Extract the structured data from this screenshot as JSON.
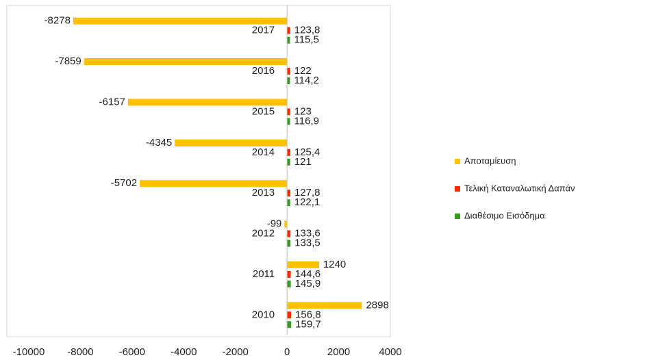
{
  "chart_data": {
    "type": "bar",
    "orientation": "horizontal",
    "categories": [
      "2010",
      "2011",
      "2012",
      "2013",
      "2014",
      "2015",
      "2016",
      "2017"
    ],
    "series": [
      {
        "name": "Αποταμίευση",
        "color": "#ffc000",
        "values": [
          2898,
          1240,
          -99,
          -5702,
          -4345,
          -6157,
          -7859,
          -8278
        ]
      },
      {
        "name": "Τελική Καταναλωτική Δαπάν",
        "color": "#ff2a00",
        "values": [
          156.8,
          144.6,
          133.6,
          127.8,
          125.4,
          123,
          122,
          123.8
        ],
        "value_labels": [
          "156,8",
          "144,6",
          "133,6",
          "127,8",
          "125,4",
          "123",
          "122",
          "123,8"
        ]
      },
      {
        "name": "Διαθέσιμο Εισόδημα",
        "color": "#3a9a1e",
        "values": [
          159.7,
          145.9,
          133.5,
          122.1,
          121,
          116.9,
          114.2,
          115.5
        ],
        "value_labels": [
          "159,7",
          "145,9",
          "133,5",
          "122,1",
          "121",
          "116,9",
          "114,2",
          "115,5"
        ]
      }
    ],
    "xlim": [
      -10000,
      4000
    ],
    "xticks": [
      -10000,
      -8000,
      -6000,
      -4000,
      -2000,
      0,
      2000,
      4000
    ],
    "grid": false,
    "legend": "right"
  }
}
